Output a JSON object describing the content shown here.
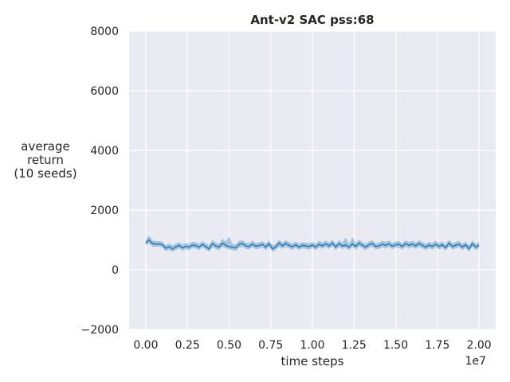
{
  "chart_data": {
    "type": "line",
    "title": "Ant-v2 SAC pss:68",
    "xlabel": "time steps",
    "ylabel_lines": [
      "average",
      "return",
      "(10 seeds)"
    ],
    "x_offset_label": "1e7",
    "xlim": [
      -0.1,
      2.1
    ],
    "ylim": [
      -2000,
      8000
    ],
    "x_ticks": [
      0.0,
      0.25,
      0.5,
      0.75,
      1.0,
      1.25,
      1.5,
      1.75,
      2.0
    ],
    "x_tick_labels": [
      "0.00",
      "0.25",
      "0.50",
      "0.75",
      "1.00",
      "1.25",
      "1.50",
      "1.75",
      "2.00"
    ],
    "y_ticks": [
      -2000,
      0,
      2000,
      4000,
      6000,
      8000
    ],
    "y_tick_labels": [
      "−2000",
      "0",
      "2000",
      "4000",
      "6000",
      "8000"
    ],
    "grid": true,
    "series": [
      {
        "x": [
          0.0,
          0.02,
          0.04,
          0.06,
          0.08,
          0.1,
          0.12,
          0.14,
          0.16,
          0.18,
          0.2,
          0.22,
          0.24,
          0.26,
          0.28,
          0.3,
          0.32,
          0.34,
          0.36,
          0.38,
          0.4,
          0.42,
          0.44,
          0.46,
          0.48,
          0.5,
          0.52,
          0.54,
          0.56,
          0.58,
          0.6,
          0.62,
          0.64,
          0.66,
          0.68,
          0.7,
          0.72,
          0.74,
          0.76,
          0.78,
          0.8,
          0.82,
          0.84,
          0.86,
          0.88,
          0.9,
          0.92,
          0.94,
          0.96,
          0.98,
          1.0,
          1.02,
          1.04,
          1.06,
          1.08,
          1.1,
          1.12,
          1.14,
          1.16,
          1.18,
          1.2,
          1.22,
          1.24,
          1.26,
          1.28,
          1.3,
          1.32,
          1.34,
          1.36,
          1.38,
          1.4,
          1.42,
          1.44,
          1.46,
          1.48,
          1.5,
          1.52,
          1.54,
          1.56,
          1.58,
          1.6,
          1.62,
          1.64,
          1.66,
          1.68,
          1.7,
          1.72,
          1.74,
          1.76,
          1.78,
          1.8,
          1.82,
          1.84,
          1.86,
          1.88,
          1.9,
          1.92,
          1.94,
          1.96,
          1.98,
          2.0
        ],
        "mean": [
          900,
          1000,
          880,
          860,
          870,
          840,
          720,
          780,
          700,
          760,
          820,
          740,
          790,
          760,
          830,
          810,
          760,
          850,
          780,
          700,
          880,
          800,
          760,
          900,
          820,
          780,
          760,
          730,
          850,
          880,
          800,
          780,
          860,
          790,
          810,
          850,
          760,
          880,
          700,
          760,
          900,
          800,
          880,
          820,
          770,
          840,
          760,
          820,
          800,
          780,
          830,
          760,
          860,
          800,
          870,
          800,
          900,
          760,
          880,
          800,
          830,
          760,
          870,
          780,
          900,
          820,
          760,
          840,
          880,
          780,
          800,
          860,
          820,
          870,
          790,
          840,
          850,
          780,
          880,
          820,
          860,
          800,
          880,
          820,
          760,
          830,
          780,
          860,
          780,
          840,
          740,
          900,
          780,
          820,
          860,
          760,
          840,
          700,
          880,
          760,
          820
        ],
        "lower": [
          820,
          880,
          780,
          770,
          780,
          750,
          620,
          680,
          600,
          660,
          720,
          640,
          690,
          660,
          730,
          710,
          660,
          750,
          680,
          600,
          760,
          700,
          660,
          780,
          720,
          680,
          660,
          630,
          740,
          770,
          700,
          680,
          760,
          690,
          710,
          750,
          660,
          770,
          600,
          660,
          780,
          700,
          770,
          720,
          670,
          740,
          660,
          720,
          700,
          680,
          730,
          660,
          760,
          700,
          770,
          700,
          790,
          660,
          770,
          700,
          730,
          660,
          770,
          680,
          790,
          720,
          660,
          740,
          770,
          680,
          700,
          760,
          720,
          770,
          690,
          740,
          750,
          680,
          770,
          720,
          760,
          700,
          770,
          720,
          660,
          730,
          680,
          760,
          680,
          740,
          640,
          790,
          680,
          720,
          760,
          660,
          740,
          600,
          770,
          660,
          720
        ],
        "upper": [
          1000,
          1150,
          980,
          960,
          960,
          940,
          830,
          880,
          810,
          870,
          920,
          850,
          900,
          870,
          940,
          920,
          870,
          960,
          890,
          820,
          1000,
          910,
          870,
          1040,
          940,
          1120,
          870,
          850,
          970,
          990,
          910,
          890,
          970,
          900,
          920,
          960,
          870,
          990,
          820,
          870,
          1010,
          910,
          990,
          930,
          880,
          950,
          870,
          930,
          910,
          890,
          940,
          870,
          970,
          910,
          980,
          910,
          1010,
          870,
          990,
          910,
          1080,
          870,
          1090,
          890,
          1010,
          930,
          870,
          950,
          990,
          890,
          910,
          970,
          930,
          980,
          900,
          950,
          960,
          890,
          990,
          930,
          970,
          910,
          990,
          930,
          870,
          940,
          890,
          970,
          890,
          950,
          850,
          1010,
          890,
          930,
          970,
          870,
          950,
          820,
          990,
          870,
          930
        ]
      }
    ],
    "colors": {
      "background": "#eaeaf2",
      "grid": "#ffffff",
      "line": "#1f77b4",
      "band": "#1f77b4"
    }
  }
}
